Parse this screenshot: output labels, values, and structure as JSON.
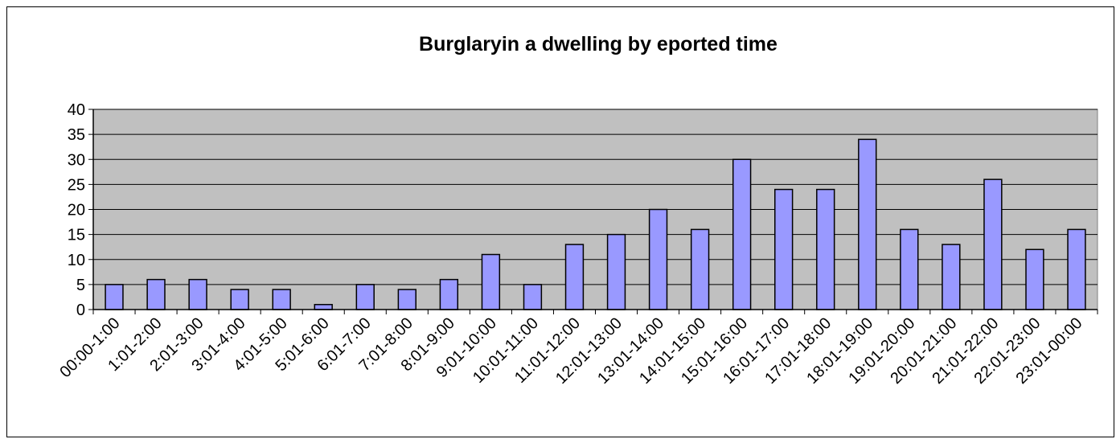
{
  "chart_data": {
    "type": "bar",
    "title": "Burglaryin a dwelling by eported time",
    "xlabel": "",
    "ylabel": "",
    "ylim": [
      0,
      40
    ],
    "yticks": [
      0,
      5,
      10,
      15,
      20,
      25,
      30,
      35,
      40
    ],
    "grid": true,
    "legend": "none",
    "colors": {
      "bar_fill": "#9999ff",
      "plot_bg": "#c0c0c0",
      "stroke": "#000000"
    },
    "categories": [
      "00:00-1:00",
      "1:01-2:00",
      "2:01-3:00",
      "3:01-4:00",
      "4:01-5:00",
      "5:01-6:00",
      "6:01-7:00",
      "7:01-8:00",
      "8:01-9:00",
      "9:01-10:00",
      "10:01-11:00",
      "11:01-12:00",
      "12:01-13:00",
      "13:01-14:00",
      "14:01-15:00",
      "15:01-16:00",
      "16:01-17:00",
      "17:01-18:00",
      "18:01-19:00",
      "19:01-20:00",
      "20:01-21:00",
      "21:01-22:00",
      "22:01-23:00",
      "23:01-00:00"
    ],
    "values": [
      5,
      6,
      6,
      4,
      4,
      1,
      5,
      4,
      6,
      11,
      5,
      13,
      15,
      20,
      16,
      30,
      24,
      24,
      34,
      16,
      13,
      26,
      12,
      16
    ]
  }
}
